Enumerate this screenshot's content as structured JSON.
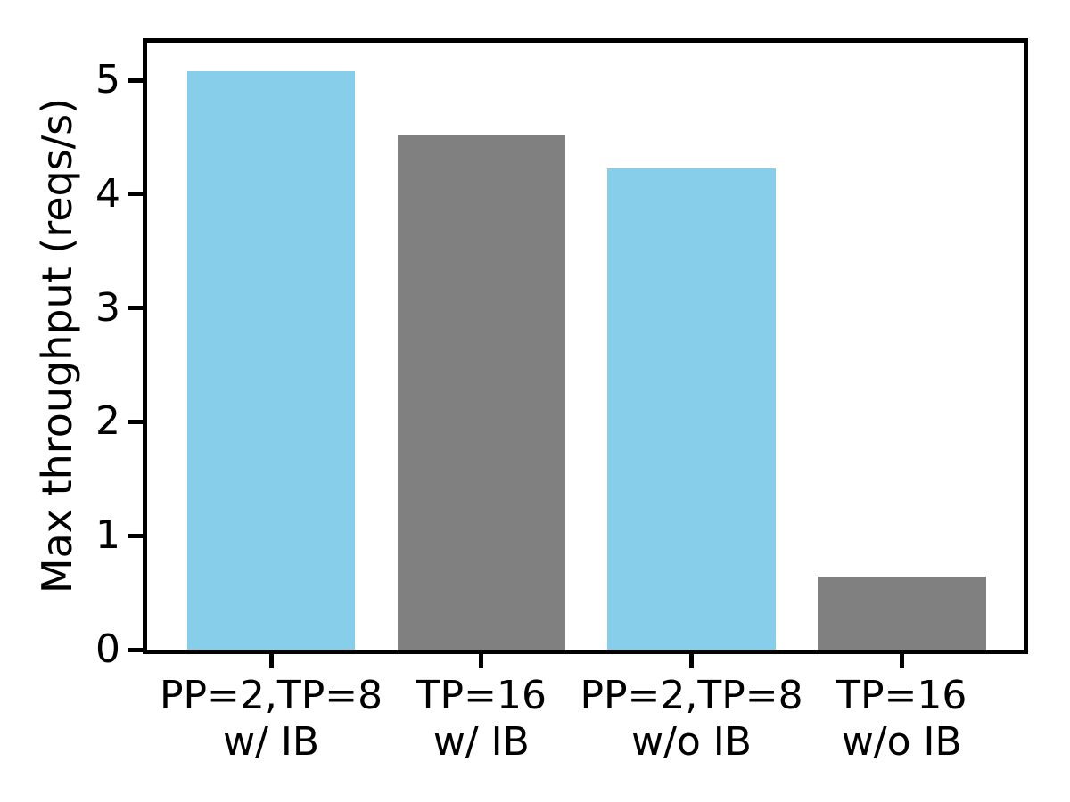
{
  "figure": {
    "background": "#ffffff",
    "axis_color": "#000000"
  },
  "chart_data": {
    "type": "bar",
    "categories": [
      "PP=2,TP=8\nw/ IB",
      "TP=16\nw/ IB",
      "PP=2,TP=8\nw/o IB",
      "TP=16\nw/o IB"
    ],
    "values": [
      5.08,
      4.52,
      4.23,
      0.64
    ],
    "bar_colors": [
      "#87CEEB",
      "#808080",
      "#87CEEB",
      "#808080"
    ],
    "title": "",
    "xlabel": "",
    "ylabel": "Max throughput (reqs/s)",
    "yticks": [
      0,
      1,
      2,
      3,
      4,
      5
    ],
    "ylim": [
      0,
      5.33
    ],
    "xlim": [
      -0.59,
      3.58
    ],
    "bar_width": 0.8,
    "grid": false,
    "legend": null
  }
}
